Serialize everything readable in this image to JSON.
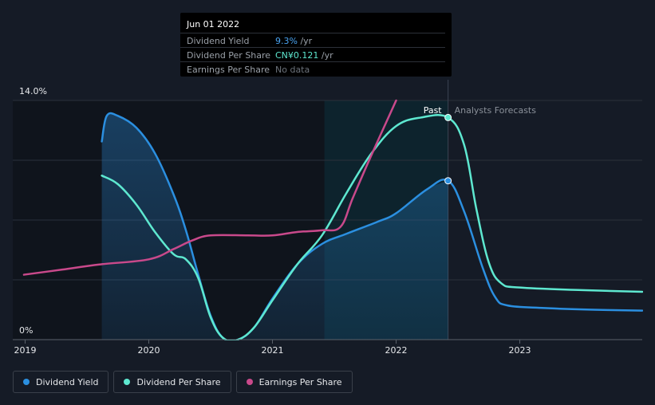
{
  "chart_data": {
    "type": "line",
    "y_axis": {
      "unit": "%",
      "ylim": [
        0,
        14
      ],
      "tick_labels": [
        "14.0%",
        "0%"
      ]
    },
    "x_axis": {
      "xlim": [
        2018.9,
        2023.99
      ],
      "tick_labels": [
        "2019",
        "2020",
        "2021",
        "2022",
        "2023"
      ],
      "ticks": [
        2019,
        2020,
        2021,
        2022,
        2023
      ]
    },
    "grid": true,
    "regions": {
      "past_label": "Past",
      "forecast_label": "Analysts Forecasts",
      "boundary_x": 2022.42,
      "highlight_start_x": 2021.42
    },
    "series": [
      {
        "name": "Dividend Yield",
        "color": "#2b8fe0",
        "filled": true,
        "points": [
          [
            2019.62,
            11.6
          ],
          [
            2019.66,
            13.1
          ],
          [
            2019.75,
            13.1
          ],
          [
            2019.9,
            12.4
          ],
          [
            2020.05,
            10.9
          ],
          [
            2020.2,
            8.5
          ],
          [
            2020.3,
            6.4
          ],
          [
            2020.4,
            3.8
          ],
          [
            2020.5,
            1.4
          ],
          [
            2020.6,
            0.1
          ],
          [
            2020.72,
            0.0
          ],
          [
            2020.85,
            0.7
          ],
          [
            2021.0,
            2.4
          ],
          [
            2021.2,
            4.4
          ],
          [
            2021.4,
            5.6
          ],
          [
            2021.6,
            6.2
          ],
          [
            2021.85,
            6.9
          ],
          [
            2022.0,
            7.4
          ],
          [
            2022.25,
            8.8
          ],
          [
            2022.42,
            9.3
          ],
          [
            2022.55,
            7.5
          ],
          [
            2022.7,
            4.2
          ],
          [
            2022.8,
            2.5
          ],
          [
            2022.9,
            2.0
          ],
          [
            2023.2,
            1.85
          ],
          [
            2023.6,
            1.75
          ],
          [
            2023.99,
            1.7
          ]
        ]
      },
      {
        "name": "Dividend Per Share",
        "color": "#5ee8d0",
        "unit": "CN¥",
        "points": [
          [
            2019.62,
            9.6
          ],
          [
            2019.75,
            9.1
          ],
          [
            2019.9,
            7.9
          ],
          [
            2020.05,
            6.3
          ],
          [
            2020.2,
            5.0
          ],
          [
            2020.3,
            4.7
          ],
          [
            2020.4,
            3.6
          ],
          [
            2020.5,
            1.3
          ],
          [
            2020.6,
            0.1
          ],
          [
            2020.72,
            0.0
          ],
          [
            2020.85,
            0.7
          ],
          [
            2021.0,
            2.3
          ],
          [
            2021.2,
            4.4
          ],
          [
            2021.4,
            6.1
          ],
          [
            2021.6,
            8.6
          ],
          [
            2021.8,
            10.9
          ],
          [
            2022.0,
            12.5
          ],
          [
            2022.2,
            13.0
          ],
          [
            2022.42,
            13.0
          ],
          [
            2022.55,
            11.4
          ],
          [
            2022.65,
            7.6
          ],
          [
            2022.75,
            4.5
          ],
          [
            2022.85,
            3.3
          ],
          [
            2023.0,
            3.05
          ],
          [
            2023.5,
            2.9
          ],
          [
            2023.99,
            2.8
          ]
        ]
      },
      {
        "name": "Earnings Per Share",
        "color": "#c9498b",
        "points": [
          [
            2018.99,
            3.8
          ],
          [
            2019.3,
            4.1
          ],
          [
            2019.6,
            4.4
          ],
          [
            2020.0,
            4.7
          ],
          [
            2020.2,
            5.3
          ],
          [
            2020.35,
            5.8
          ],
          [
            2020.5,
            6.1
          ],
          [
            2020.8,
            6.1
          ],
          [
            2021.0,
            6.1
          ],
          [
            2021.2,
            6.3
          ],
          [
            2021.4,
            6.4
          ],
          [
            2021.55,
            6.6
          ],
          [
            2021.65,
            8.3
          ],
          [
            2021.8,
            10.8
          ],
          [
            2022.0,
            14.0
          ]
        ]
      }
    ]
  },
  "tooltip": {
    "date": "Jun 01 2022",
    "rows": [
      {
        "name": "Dividend Yield",
        "value": "9.3%",
        "unit": " /yr",
        "color": "#4aa3f0"
      },
      {
        "name": "Dividend Per Share",
        "value": "CN¥0.121",
        "unit": " /yr",
        "color": "#5ee8d0"
      },
      {
        "name": "Earnings Per Share",
        "value": "No data",
        "unit": "",
        "color": "#6c727b"
      }
    ]
  },
  "legend": [
    {
      "label": "Dividend Yield",
      "color": "#2b8fe0"
    },
    {
      "label": "Dividend Per Share",
      "color": "#5ee8d0"
    },
    {
      "label": "Earnings Per Share",
      "color": "#c9498b"
    }
  ]
}
